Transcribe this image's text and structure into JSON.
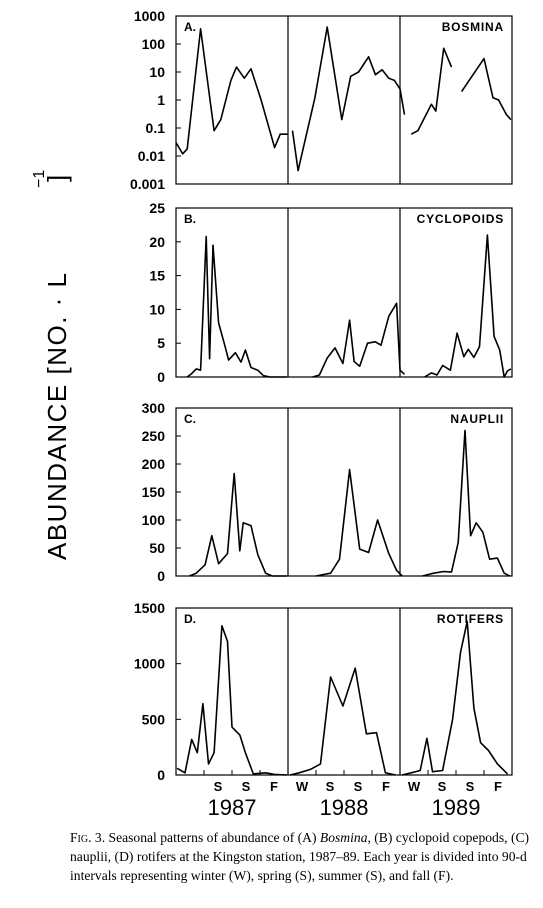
{
  "y_axis_label": "ABUNDANCE [NO. · L",
  "y_axis_exponent": "−1",
  "y_axis_close": "]",
  "season_labels": [
    "W",
    "S",
    "S",
    "F"
  ],
  "years": [
    "1987",
    "1988",
    "1989"
  ],
  "caption": {
    "fig_label": "Fig. 3.",
    "text_before": "Seasonal patterns of abundance of (A)",
    "italic": "Bosmina",
    "text_after": ", (B) cyclopoid copepods, (C) nauplii, (D) rotifers at the Kingston station, 1987–89. Each year is divided into 90-d intervals representing winter (W), spring (S), summer (S), and fall (F)."
  },
  "colors": {
    "line": "#000000",
    "background": "#ffffff"
  },
  "chart_data": [
    {
      "type": "line",
      "panel": "A.",
      "series_label": "BOSMINA",
      "y_scale": "log",
      "ylim": [
        0.001,
        1000
      ],
      "y_ticks": [
        "1000",
        "100",
        "10",
        "1",
        "0.1",
        "0.01",
        "0.001"
      ],
      "x_unit": "year",
      "xlim": [
        1987,
        1990
      ],
      "segments": [
        [
          [
            1987.0,
            0.03
          ],
          [
            1987.06,
            0.012
          ],
          [
            1987.1,
            0.018
          ],
          [
            1987.22,
            350
          ],
          [
            1987.34,
            0.08
          ],
          [
            1987.4,
            0.2
          ],
          [
            1987.49,
            5
          ],
          [
            1987.54,
            15
          ],
          [
            1987.61,
            6
          ],
          [
            1987.67,
            13
          ],
          [
            1987.76,
            1
          ],
          [
            1987.88,
            0.02
          ],
          [
            1987.93,
            0.06
          ],
          [
            1988.0,
            0.06
          ]
        ],
        [
          [
            1988.04,
            0.08
          ],
          [
            1988.09,
            0.003
          ],
          [
            1988.24,
            1.2
          ],
          [
            1988.35,
            400
          ],
          [
            1988.48,
            0.2
          ],
          [
            1988.56,
            7
          ],
          [
            1988.63,
            10
          ],
          [
            1988.72,
            35
          ],
          [
            1988.78,
            8
          ],
          [
            1988.84,
            12
          ],
          [
            1988.9,
            6
          ],
          [
            1988.95,
            5
          ],
          [
            1989.0,
            2.5
          ],
          [
            1989.04,
            0.3
          ]
        ],
        [
          [
            1989.1,
            0.06
          ],
          [
            1989.16,
            0.08
          ],
          [
            1989.28,
            0.7
          ],
          [
            1989.32,
            0.4
          ],
          [
            1989.39,
            70
          ],
          [
            1989.46,
            15
          ]
        ],
        [
          [
            1989.55,
            2
          ],
          [
            1989.75,
            30
          ],
          [
            1989.83,
            1.2
          ],
          [
            1989.88,
            1
          ],
          [
            1989.95,
            0.3
          ],
          [
            1989.99,
            0.2
          ]
        ]
      ]
    },
    {
      "type": "line",
      "panel": "B.",
      "series_label": "CYCLOPOIDS",
      "y_scale": "linear",
      "ylim": [
        0,
        25
      ],
      "y_ticks": [
        "25",
        "20",
        "15",
        "10",
        "5",
        "0"
      ],
      "x_unit": "year",
      "xlim": [
        1987,
        1990
      ],
      "segments": [
        [
          [
            1987.1,
            0
          ],
          [
            1987.14,
            0.5
          ],
          [
            1987.18,
            1.2
          ],
          [
            1987.22,
            1
          ],
          [
            1987.27,
            20.8
          ],
          [
            1987.3,
            2.7
          ],
          [
            1987.33,
            19.5
          ],
          [
            1987.38,
            8
          ],
          [
            1987.43,
            5
          ],
          [
            1987.47,
            2.5
          ],
          [
            1987.53,
            3.6
          ],
          [
            1987.58,
            2.2
          ],
          [
            1987.62,
            4
          ],
          [
            1987.67,
            1.4
          ],
          [
            1987.73,
            1
          ],
          [
            1987.78,
            0.2
          ],
          [
            1987.84,
            0
          ],
          [
            1987.99,
            0
          ]
        ],
        [
          [
            1988.22,
            0
          ],
          [
            1988.28,
            0.3
          ],
          [
            1988.35,
            2.8
          ],
          [
            1988.42,
            4.3
          ],
          [
            1988.49,
            2
          ],
          [
            1988.55,
            8.4
          ],
          [
            1988.59,
            2.3
          ],
          [
            1988.64,
            1.6
          ],
          [
            1988.71,
            5
          ],
          [
            1988.78,
            5.2
          ],
          [
            1988.83,
            4.7
          ],
          [
            1988.9,
            9
          ],
          [
            1988.97,
            10.9
          ],
          [
            1989.0,
            1
          ],
          [
            1989.04,
            0.4
          ]
        ],
        [
          [
            1989.22,
            0
          ],
          [
            1989.28,
            0.6
          ],
          [
            1989.33,
            0.3
          ],
          [
            1989.38,
            1.7
          ],
          [
            1989.45,
            1
          ],
          [
            1989.51,
            6.5
          ],
          [
            1989.57,
            3
          ],
          [
            1989.61,
            4.1
          ],
          [
            1989.66,
            2.9
          ],
          [
            1989.71,
            4.5
          ],
          [
            1989.78,
            21
          ],
          [
            1989.84,
            6
          ],
          [
            1989.89,
            4
          ],
          [
            1989.93,
            0
          ],
          [
            1989.96,
            0.9
          ],
          [
            1989.99,
            1.2
          ]
        ]
      ]
    },
    {
      "type": "line",
      "panel": "C.",
      "series_label": "NAUPLII",
      "y_scale": "linear",
      "ylim": [
        0,
        300
      ],
      "y_ticks": [
        "300",
        "250",
        "200",
        "150",
        "100",
        "50",
        "0"
      ],
      "x_unit": "year",
      "xlim": [
        1987,
        1990
      ],
      "segments": [
        [
          [
            1987.12,
            0
          ],
          [
            1987.18,
            5
          ],
          [
            1987.26,
            20
          ],
          [
            1987.32,
            72
          ],
          [
            1987.38,
            22
          ],
          [
            1987.46,
            40
          ],
          [
            1987.52,
            183
          ],
          [
            1987.57,
            45
          ],
          [
            1987.6,
            95
          ],
          [
            1987.67,
            90
          ],
          [
            1987.73,
            38
          ],
          [
            1987.8,
            5
          ],
          [
            1987.86,
            0
          ],
          [
            1987.99,
            0
          ]
        ],
        [
          [
            1988.25,
            0
          ],
          [
            1988.3,
            2
          ],
          [
            1988.38,
            5
          ],
          [
            1988.46,
            30
          ],
          [
            1988.55,
            190
          ],
          [
            1988.64,
            48
          ],
          [
            1988.72,
            42
          ],
          [
            1988.8,
            100
          ],
          [
            1988.9,
            40
          ],
          [
            1988.97,
            10
          ],
          [
            1989.02,
            0
          ]
        ],
        [
          [
            1989.2,
            0
          ],
          [
            1989.3,
            5
          ],
          [
            1989.39,
            8
          ],
          [
            1989.46,
            7
          ],
          [
            1989.52,
            60
          ],
          [
            1989.58,
            260
          ],
          [
            1989.63,
            72
          ],
          [
            1989.68,
            95
          ],
          [
            1989.74,
            78
          ],
          [
            1989.8,
            30
          ],
          [
            1989.87,
            32
          ],
          [
            1989.93,
            5
          ],
          [
            1989.98,
            0
          ]
        ]
      ]
    },
    {
      "type": "line",
      "panel": "D.",
      "series_label": "ROTIFERS",
      "y_scale": "linear",
      "ylim": [
        0,
        1500
      ],
      "y_ticks": [
        "1500",
        "1000",
        "500",
        "0"
      ],
      "x_unit": "year",
      "xlim": [
        1987,
        1990
      ],
      "segments": [
        [
          [
            1987.01,
            60
          ],
          [
            1987.08,
            20
          ],
          [
            1987.14,
            320
          ],
          [
            1987.19,
            200
          ],
          [
            1987.24,
            640
          ],
          [
            1987.29,
            100
          ],
          [
            1987.34,
            200
          ],
          [
            1987.41,
            1340
          ],
          [
            1987.46,
            1200
          ],
          [
            1987.5,
            430
          ],
          [
            1987.57,
            360
          ],
          [
            1987.62,
            200
          ],
          [
            1987.69,
            10
          ],
          [
            1987.8,
            20
          ],
          [
            1987.88,
            5
          ],
          [
            1987.99,
            0
          ]
        ],
        [
          [
            1988.02,
            0
          ],
          [
            1988.1,
            20
          ],
          [
            1988.2,
            50
          ],
          [
            1988.29,
            100
          ],
          [
            1988.38,
            880
          ],
          [
            1988.49,
            620
          ],
          [
            1988.6,
            960
          ],
          [
            1988.7,
            370
          ],
          [
            1988.79,
            380
          ],
          [
            1988.87,
            20
          ],
          [
            1988.96,
            0
          ]
        ],
        [
          [
            1989.02,
            0
          ],
          [
            1989.1,
            20
          ],
          [
            1989.18,
            40
          ],
          [
            1989.24,
            330
          ],
          [
            1989.29,
            30
          ],
          [
            1989.38,
            40
          ],
          [
            1989.47,
            500
          ],
          [
            1989.54,
            1100
          ],
          [
            1989.6,
            1380
          ],
          [
            1989.66,
            600
          ],
          [
            1989.72,
            290
          ],
          [
            1989.79,
            220
          ],
          [
            1989.87,
            100
          ],
          [
            1989.96,
            10
          ]
        ]
      ]
    }
  ]
}
